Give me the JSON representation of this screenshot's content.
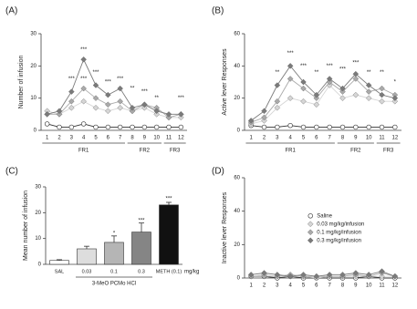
{
  "chart_data": [
    {
      "type": "line",
      "panel": "(A)",
      "y_label": "Number of infusion",
      "categories": [
        "1",
        "2",
        "3",
        "4",
        "5",
        "6",
        "7",
        "8",
        "9",
        "10",
        "11",
        "12"
      ],
      "ylim": [
        0,
        30
      ],
      "yticks": [
        0,
        10,
        20,
        30
      ],
      "series": [
        {
          "color": "#ffffff",
          "values": [
            2,
            1,
            1,
            2,
            1,
            1,
            1,
            1,
            1,
            1,
            1,
            1
          ]
        },
        {
          "color": "#d6d6d6",
          "values": [
            6,
            5,
            7,
            9,
            7,
            6,
            7,
            6,
            7,
            5,
            4,
            4
          ]
        },
        {
          "color": "#aaaaaa",
          "values": [
            5,
            5,
            9,
            13,
            10,
            8,
            9,
            6,
            8,
            7,
            4,
            5
          ]
        },
        {
          "color": "#7a7a7a",
          "values": [
            5,
            6,
            12,
            22,
            14,
            11,
            13,
            7,
            8,
            6,
            5,
            5
          ]
        }
      ],
      "groups": [
        {
          "label": "FR1",
          "first": "1",
          "last": "7"
        },
        {
          "label": "FR2",
          "first": "8",
          "last": "10"
        },
        {
          "label": "FR3",
          "first": "11",
          "last": "12"
        }
      ],
      "annotations": [
        {
          "text": "***",
          "x": "3",
          "y": 16
        },
        {
          "text": "***",
          "x": "4",
          "y": 25
        },
        {
          "text": "***",
          "x": "4",
          "y": 16
        },
        {
          "text": "***",
          "x": "5",
          "y": 18
        },
        {
          "text": "***",
          "x": "6",
          "y": 15
        },
        {
          "text": "***",
          "x": "7",
          "y": 16
        },
        {
          "text": "**",
          "x": "8",
          "y": 13
        },
        {
          "text": "***",
          "x": "9",
          "y": 12
        },
        {
          "text": "**",
          "x": "10",
          "y": 10
        },
        {
          "text": "***",
          "x": "12",
          "y": 10
        }
      ]
    },
    {
      "type": "line",
      "panel": "(B)",
      "y_label": "Active lever Responses",
      "categories": [
        "1",
        "2",
        "3",
        "4",
        "5",
        "6",
        "7",
        "8",
        "9",
        "10",
        "11",
        "12"
      ],
      "ylim": [
        0,
        60
      ],
      "yticks": [
        0,
        20,
        40,
        60
      ],
      "series": [
        {
          "color": "#ffffff",
          "values": [
            3,
            2,
            2,
            3,
            2,
            2,
            2,
            2,
            2,
            2,
            2,
            2
          ]
        },
        {
          "color": "#d6d6d6",
          "values": [
            4,
            6,
            14,
            20,
            18,
            16,
            28,
            20,
            22,
            20,
            18,
            18
          ]
        },
        {
          "color": "#aaaaaa",
          "values": [
            5,
            8,
            18,
            32,
            26,
            20,
            30,
            24,
            32,
            24,
            26,
            22
          ]
        },
        {
          "color": "#7a7a7a",
          "values": [
            6,
            12,
            28,
            40,
            30,
            22,
            32,
            26,
            35,
            28,
            22,
            20
          ]
        }
      ],
      "groups": [
        {
          "label": "FR1",
          "first": "1",
          "last": "7"
        },
        {
          "label": "FR2",
          "first": "8",
          "last": "10"
        },
        {
          "label": "FR3",
          "first": "11",
          "last": "12"
        }
      ],
      "annotations": [
        {
          "text": "**",
          "x": "3",
          "y": 36
        },
        {
          "text": "***",
          "x": "4",
          "y": 48
        },
        {
          "text": "***",
          "x": "5",
          "y": 40
        },
        {
          "text": "**",
          "x": "6",
          "y": 36
        },
        {
          "text": "***",
          "x": "7",
          "y": 40
        },
        {
          "text": "***",
          "x": "8",
          "y": 38
        },
        {
          "text": "***",
          "x": "9",
          "y": 42
        },
        {
          "text": "**",
          "x": "10",
          "y": 36
        },
        {
          "text": "**",
          "x": "11",
          "y": 36
        },
        {
          "text": "*",
          "x": "12",
          "y": 30
        }
      ]
    },
    {
      "type": "bar",
      "panel": "(C)",
      "y_label": "Mean number of infusion",
      "categories": [
        "SAL",
        "0.03",
        "0.1",
        "0.3",
        "METH (0.1)"
      ],
      "values": [
        1.5,
        6,
        8.5,
        12.5,
        23
      ],
      "errors": [
        0.3,
        1,
        2.5,
        3.5,
        1
      ],
      "colors": [
        "#ffffff",
        "#dddddd",
        "#b5b5b5",
        "#858585",
        "#111111"
      ],
      "ylim": [
        0,
        30
      ],
      "yticks": [
        0,
        10,
        20,
        30
      ],
      "group_label": "3-MeO PCMo HCl",
      "unit": "mg/kg",
      "annotations": [
        {
          "text": "*",
          "x": "0.1",
          "y": 12
        },
        {
          "text": "***",
          "x": "0.3",
          "y": 17
        },
        {
          "text": "***",
          "x": "METH (0.1)",
          "y": 25.5
        }
      ]
    },
    {
      "type": "line",
      "panel": "(D)",
      "y_label": "Inactive lever Responses",
      "categories": [
        "1",
        "2",
        "3",
        "4",
        "5",
        "6",
        "7",
        "8",
        "9",
        "10",
        "11",
        "12"
      ],
      "ylim": [
        0,
        60
      ],
      "yticks": [
        0,
        20,
        40,
        60
      ],
      "legend": "center-right",
      "series": [
        {
          "name": "Saline",
          "color": "#ffffff",
          "values": [
            1,
            1,
            0,
            1,
            0,
            0,
            0,
            0,
            0,
            1,
            0,
            0
          ]
        },
        {
          "name": "0.03 mg/kg/infusion",
          "color": "#d6d6d6",
          "values": [
            1,
            2,
            1,
            1,
            1,
            0,
            1,
            1,
            1,
            1,
            1,
            1
          ]
        },
        {
          "name": "0.1 mg/kg/infusion",
          "color": "#aaaaaa",
          "values": [
            1,
            1,
            1,
            2,
            1,
            1,
            1,
            1,
            2,
            1,
            3,
            1
          ]
        },
        {
          "name": "0.3 mg/kg/infusion",
          "color": "#7a7a7a",
          "values": [
            2,
            3,
            2,
            1,
            2,
            1,
            2,
            2,
            3,
            2,
            4,
            1
          ]
        }
      ]
    }
  ]
}
